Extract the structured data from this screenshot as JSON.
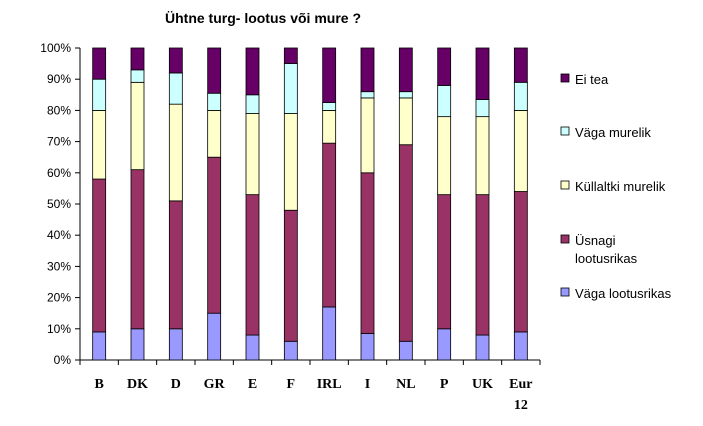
{
  "chart_data": {
    "type": "bar",
    "stacked": true,
    "percent": true,
    "title": "Ühtne turg- lootus või mure ?",
    "xlabel": "",
    "ylabel": "",
    "ylim": [
      0,
      100
    ],
    "yticks": [
      "0%",
      "10%",
      "20%",
      "30%",
      "40%",
      "50%",
      "60%",
      "70%",
      "80%",
      "90%",
      "100%"
    ],
    "grid": false,
    "legend_position": "right",
    "categories": [
      [
        "B"
      ],
      [
        "DK"
      ],
      [
        "D"
      ],
      [
        "GR"
      ],
      [
        "E"
      ],
      [
        "F"
      ],
      [
        "IRL"
      ],
      [
        "I"
      ],
      [
        "NL"
      ],
      [
        "P"
      ],
      [
        "UK"
      ],
      [
        "Eur",
        "12"
      ]
    ],
    "series": [
      {
        "name": "Väga lootusrikas",
        "legend_lines": [
          "Väga lootusrikas"
        ],
        "color": "#9999ff",
        "values": [
          9,
          10,
          10,
          15,
          8,
          6,
          17,
          8.5,
          6,
          10,
          8,
          9
        ]
      },
      {
        "name": "Üsnagi lootusrikas",
        "legend_lines": [
          "Üsnagi",
          "lootusrikas"
        ],
        "color": "#993366",
        "values": [
          49,
          51,
          41,
          50,
          45,
          42,
          52.5,
          51.5,
          63,
          43,
          45,
          45
        ]
      },
      {
        "name": "Küllaltki murelik",
        "legend_lines": [
          "Küllaltki murelik"
        ],
        "color": "#ffffcc",
        "values": [
          22,
          28,
          31,
          15,
          26,
          31,
          10.5,
          24,
          15,
          25,
          25,
          26
        ]
      },
      {
        "name": "Väga murelik",
        "legend_lines": [
          "Väga murelik"
        ],
        "color": "#ccffff",
        "values": [
          10,
          4,
          10,
          5.5,
          6,
          16,
          2.5,
          2,
          2,
          10,
          5.5,
          9
        ]
      },
      {
        "name": "Ei tea",
        "legend_lines": [
          "Ei tea"
        ],
        "color": "#660066",
        "values": [
          10,
          7,
          8,
          14.5,
          15,
          5,
          17.5,
          14,
          14,
          12,
          16.5,
          11
        ]
      }
    ]
  }
}
